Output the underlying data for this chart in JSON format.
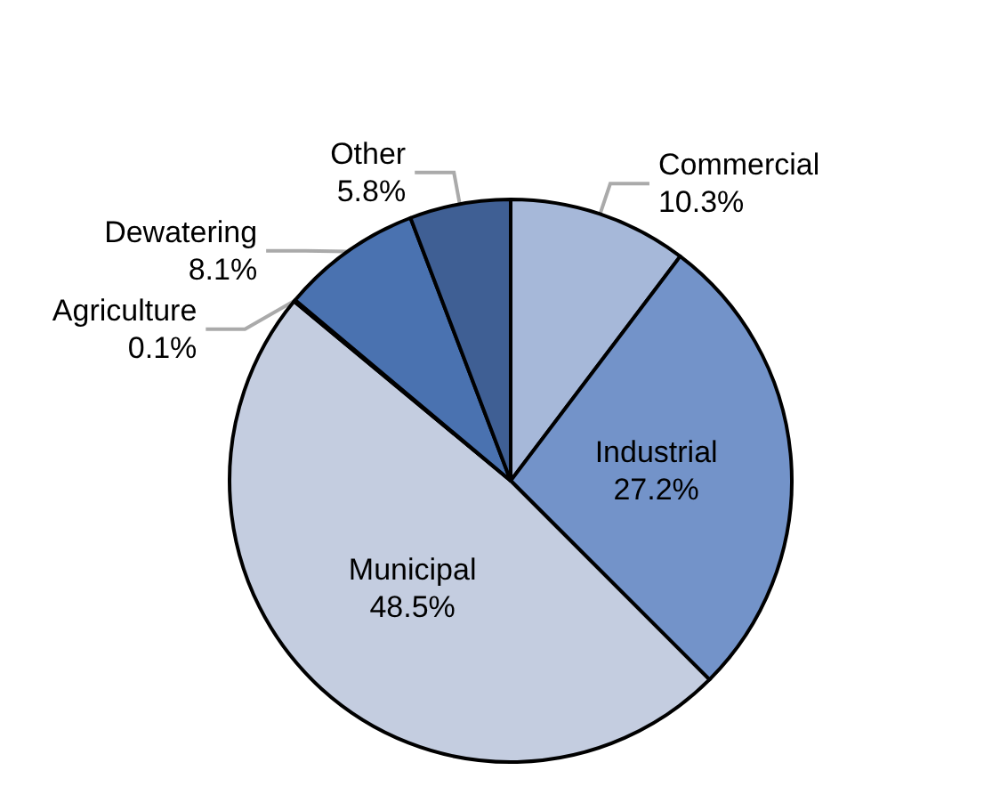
{
  "chart_data": {
    "type": "pie",
    "categories": [
      "Commercial",
      "Industrial",
      "Municipal",
      "Agriculture",
      "Dewatering",
      "Other"
    ],
    "values": [
      10.3,
      27.2,
      48.5,
      0.1,
      8.1,
      5.8
    ],
    "colors": [
      "#a6b8d9",
      "#7393c9",
      "#c4cde0",
      "#4c6fa6",
      "#4a72b0",
      "#3f5f94"
    ],
    "value_labels": [
      "10.3%",
      "27.2%",
      "48.5%",
      "0.1%",
      "8.1%",
      "5.8%"
    ],
    "legend": false
  }
}
